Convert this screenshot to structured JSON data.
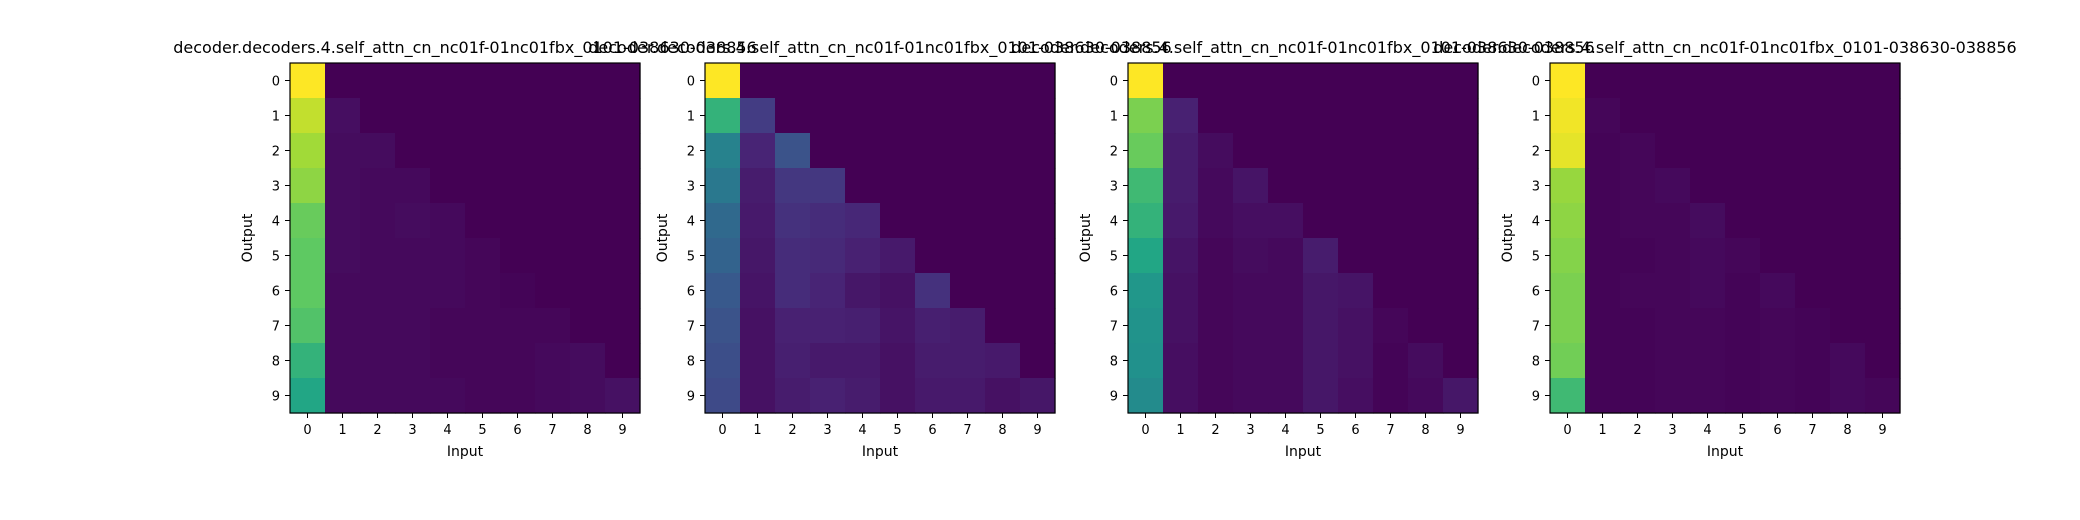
{
  "chart_data": [
    {
      "type": "heatmap",
      "title": "decoder.decoders.4.self_attn_cn_nc01f-01nc01fbx_0101-038630-038856",
      "xlabel": "Input",
      "ylabel": "Output",
      "x_ticks": [
        "0",
        "1",
        "2",
        "3",
        "4",
        "5",
        "6",
        "7",
        "8",
        "9"
      ],
      "y_ticks": [
        "0",
        "1",
        "2",
        "3",
        "4",
        "5",
        "6",
        "7",
        "8",
        "9"
      ],
      "colormap": "viridis",
      "value_range": [
        0,
        1
      ],
      "values": [
        [
          1.0,
          0.0,
          0.0,
          0.0,
          0.0,
          0.0,
          0.0,
          0.0,
          0.0,
          0.0
        ],
        [
          0.95,
          0.05,
          0.0,
          0.0,
          0.0,
          0.0,
          0.0,
          0.0,
          0.0,
          0.0
        ],
        [
          0.92,
          0.04,
          0.04,
          0.0,
          0.0,
          0.0,
          0.0,
          0.0,
          0.0,
          0.0
        ],
        [
          0.9,
          0.04,
          0.03,
          0.03,
          0.0,
          0.0,
          0.0,
          0.0,
          0.0,
          0.0
        ],
        [
          0.86,
          0.04,
          0.03,
          0.04,
          0.03,
          0.0,
          0.0,
          0.0,
          0.0,
          0.0
        ],
        [
          0.85,
          0.04,
          0.03,
          0.03,
          0.03,
          0.02,
          0.0,
          0.0,
          0.0,
          0.0
        ],
        [
          0.85,
          0.03,
          0.03,
          0.03,
          0.03,
          0.02,
          0.01,
          0.0,
          0.0,
          0.0
        ],
        [
          0.83,
          0.03,
          0.03,
          0.03,
          0.02,
          0.02,
          0.02,
          0.02,
          0.0,
          0.0
        ],
        [
          0.78,
          0.03,
          0.03,
          0.03,
          0.02,
          0.02,
          0.02,
          0.03,
          0.04,
          0.0
        ],
        [
          0.74,
          0.03,
          0.03,
          0.03,
          0.03,
          0.02,
          0.02,
          0.03,
          0.04,
          0.06
        ]
      ]
    },
    {
      "type": "heatmap",
      "title": "decoder.decoders.4.self_attn_cn_nc01f-01nc01fbx_0101-038630-038856",
      "xlabel": "Input",
      "ylabel": "Output",
      "x_ticks": [
        "0",
        "1",
        "2",
        "3",
        "4",
        "5",
        "6",
        "7",
        "8",
        "9"
      ],
      "y_ticks": [
        "0",
        "1",
        "2",
        "3",
        "4",
        "5",
        "6",
        "7",
        "8",
        "9"
      ],
      "colormap": "viridis",
      "value_range": [
        0,
        1
      ],
      "values": [
        [
          1.0,
          0.0,
          0.0,
          0.0,
          0.0,
          0.0,
          0.0,
          0.0,
          0.0,
          0.0
        ],
        [
          0.78,
          0.22,
          0.0,
          0.0,
          0.0,
          0.0,
          0.0,
          0.0,
          0.0,
          0.0
        ],
        [
          0.55,
          0.13,
          0.32,
          0.0,
          0.0,
          0.0,
          0.0,
          0.0,
          0.0,
          0.0
        ],
        [
          0.5,
          0.1,
          0.2,
          0.2,
          0.0,
          0.0,
          0.0,
          0.0,
          0.0,
          0.0
        ],
        [
          0.43,
          0.09,
          0.18,
          0.16,
          0.14,
          0.0,
          0.0,
          0.0,
          0.0,
          0.0
        ],
        [
          0.4,
          0.08,
          0.16,
          0.15,
          0.12,
          0.09,
          0.0,
          0.0,
          0.0,
          0.0
        ],
        [
          0.35,
          0.07,
          0.16,
          0.13,
          0.08,
          0.06,
          0.18,
          0.0,
          0.0,
          0.0
        ],
        [
          0.32,
          0.06,
          0.12,
          0.12,
          0.11,
          0.07,
          0.11,
          0.1,
          0.0,
          0.0
        ],
        [
          0.3,
          0.06,
          0.11,
          0.09,
          0.09,
          0.06,
          0.1,
          0.1,
          0.09,
          0.0
        ],
        [
          0.28,
          0.06,
          0.1,
          0.12,
          0.1,
          0.06,
          0.09,
          0.09,
          0.06,
          0.08
        ]
      ]
    },
    {
      "type": "heatmap",
      "title": "decoder.decoders.4.self_attn_cn_nc01f-01nc01fbx_0101-038630-038856",
      "xlabel": "Input",
      "ylabel": "Output",
      "x_ticks": [
        "0",
        "1",
        "2",
        "3",
        "4",
        "5",
        "6",
        "7",
        "8",
        "9"
      ],
      "y_ticks": [
        "0",
        "1",
        "2",
        "3",
        "4",
        "5",
        "6",
        "7",
        "8",
        "9"
      ],
      "colormap": "viridis",
      "value_range": [
        0,
        1
      ],
      "values": [
        [
          1.0,
          0.0,
          0.0,
          0.0,
          0.0,
          0.0,
          0.0,
          0.0,
          0.0,
          0.0
        ],
        [
          0.88,
          0.12,
          0.0,
          0.0,
          0.0,
          0.0,
          0.0,
          0.0,
          0.0,
          0.0
        ],
        [
          0.86,
          0.1,
          0.04,
          0.0,
          0.0,
          0.0,
          0.0,
          0.0,
          0.0,
          0.0
        ],
        [
          0.8,
          0.1,
          0.03,
          0.07,
          0.0,
          0.0,
          0.0,
          0.0,
          0.0,
          0.0
        ],
        [
          0.78,
          0.09,
          0.03,
          0.05,
          0.05,
          0.0,
          0.0,
          0.0,
          0.0,
          0.0
        ],
        [
          0.74,
          0.07,
          0.02,
          0.04,
          0.03,
          0.1,
          0.0,
          0.0,
          0.0,
          0.0
        ],
        [
          0.66,
          0.06,
          0.02,
          0.03,
          0.03,
          0.08,
          0.07,
          0.0,
          0.0,
          0.0
        ],
        [
          0.64,
          0.06,
          0.02,
          0.03,
          0.03,
          0.08,
          0.06,
          0.02,
          0.0,
          0.0
        ],
        [
          0.63,
          0.05,
          0.02,
          0.03,
          0.03,
          0.08,
          0.06,
          0.01,
          0.04,
          0.0
        ],
        [
          0.6,
          0.05,
          0.02,
          0.03,
          0.03,
          0.08,
          0.05,
          0.01,
          0.03,
          0.08
        ]
      ]
    },
    {
      "type": "heatmap",
      "title": "decoder.decoders.4.self_attn_cn_nc01f-01nc01fbx_0101-038630-038856",
      "xlabel": "Input",
      "ylabel": "Output",
      "x_ticks": [
        "0",
        "1",
        "2",
        "3",
        "4",
        "5",
        "6",
        "7",
        "8",
        "9"
      ],
      "y_ticks": [
        "0",
        "1",
        "2",
        "3",
        "4",
        "5",
        "6",
        "7",
        "8",
        "9"
      ],
      "colormap": "viridis",
      "value_range": [
        0,
        1
      ],
      "values": [
        [
          1.0,
          0.0,
          0.0,
          0.0,
          0.0,
          0.0,
          0.0,
          0.0,
          0.0,
          0.0
        ],
        [
          0.99,
          0.02,
          0.0,
          0.0,
          0.0,
          0.0,
          0.0,
          0.0,
          0.0,
          0.0
        ],
        [
          0.98,
          0.01,
          0.02,
          0.0,
          0.0,
          0.0,
          0.0,
          0.0,
          0.0,
          0.0
        ],
        [
          0.91,
          0.01,
          0.02,
          0.03,
          0.0,
          0.0,
          0.0,
          0.0,
          0.0,
          0.0
        ],
        [
          0.9,
          0.01,
          0.02,
          0.02,
          0.04,
          0.0,
          0.0,
          0.0,
          0.0,
          0.0
        ],
        [
          0.89,
          0.01,
          0.01,
          0.02,
          0.03,
          0.02,
          0.0,
          0.0,
          0.0,
          0.0
        ],
        [
          0.88,
          0.01,
          0.02,
          0.02,
          0.03,
          0.01,
          0.03,
          0.0,
          0.0,
          0.0
        ],
        [
          0.88,
          0.01,
          0.01,
          0.02,
          0.02,
          0.01,
          0.02,
          0.01,
          0.0,
          0.0
        ],
        [
          0.87,
          0.01,
          0.01,
          0.02,
          0.02,
          0.01,
          0.02,
          0.01,
          0.03,
          0.0
        ],
        [
          0.8,
          0.01,
          0.01,
          0.02,
          0.02,
          0.01,
          0.02,
          0.01,
          0.03,
          0.02
        ]
      ]
    }
  ]
}
